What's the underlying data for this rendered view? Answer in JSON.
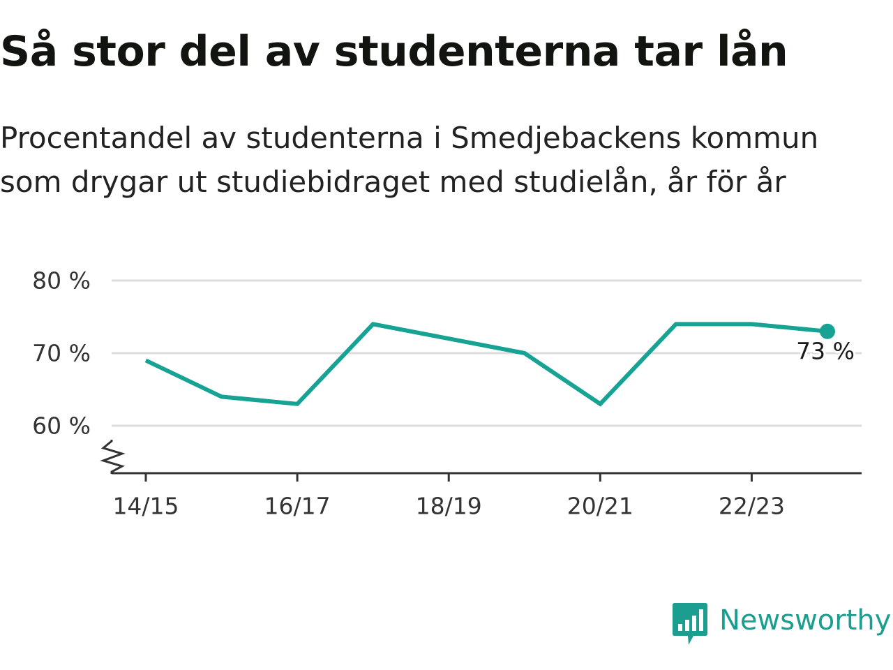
{
  "header": {
    "title": "Så stor del av studenterna tar lån",
    "subtitle": "Procentandel av studenterna i Smedjebackens kommun som drygar ut studiebidraget med studielån, år för år"
  },
  "brand": {
    "name": "Newsworthy",
    "logo_icon": "chat-bar-chart-icon",
    "color": "#1b9e8f"
  },
  "chart_data": {
    "type": "line",
    "title": "Så stor del av studenterna tar lån",
    "subtitle": "Procentandel av studenterna i Smedjebackens kommun som drygar ut studiebidraget med studielån, år för år",
    "xlabel": "",
    "ylabel": "",
    "x": [
      "14/15",
      "15/16",
      "16/17",
      "17/18",
      "18/19",
      "19/20",
      "20/21",
      "21/22",
      "22/23",
      "23/24"
    ],
    "x_tick_labels": [
      "14/15",
      "16/17",
      "18/19",
      "20/21",
      "22/23"
    ],
    "y_tick_values": [
      60,
      70,
      80
    ],
    "y_tick_labels": [
      "60 %",
      "70 %",
      "80 %"
    ],
    "ylim": [
      53.5,
      80
    ],
    "axis_break": true,
    "grid": true,
    "legend": "none",
    "series": [
      {
        "values": [
          69,
          64,
          63,
          74,
          72,
          70,
          63,
          74,
          74,
          73
        ],
        "color": "#16a394"
      }
    ],
    "end_label": "73 %"
  }
}
